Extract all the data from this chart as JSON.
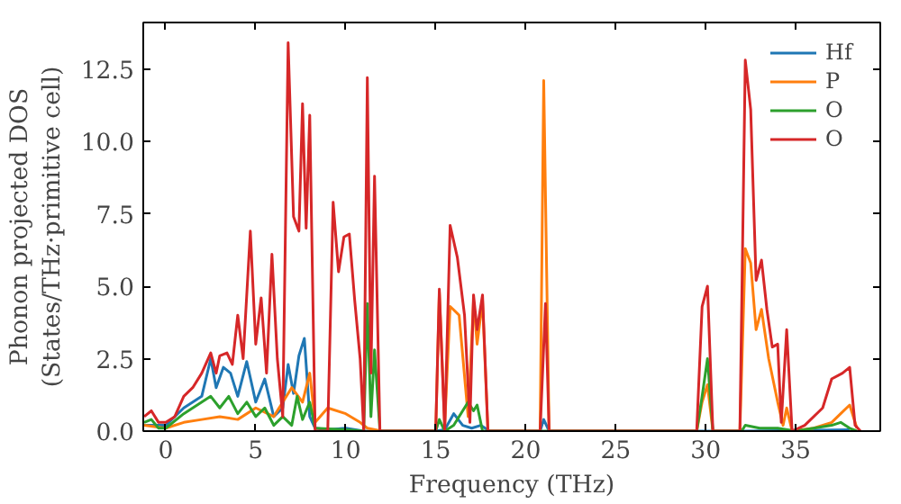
{
  "chart_data": {
    "type": "line",
    "xlabel": "Frequency (THz)",
    "ylabel": "Phonon projected DOS\n(States/THz·primitive cell)",
    "xlim": [
      -1.25,
      39.7
    ],
    "ylim": [
      0,
      14.1
    ],
    "xticks": [
      0,
      5,
      10,
      15,
      20,
      25,
      30,
      35
    ],
    "yticks": [
      {
        "value": 0,
        "label": "0.0"
      },
      {
        "value": 2.5,
        "label": "2.5"
      },
      {
        "value": 5,
        "label": "5.0"
      },
      {
        "value": 7.5,
        "label": "7.5"
      },
      {
        "value": 10,
        "label": "10.0"
      },
      {
        "value": 12.5,
        "label": "12.5"
      }
    ],
    "grid": false,
    "legend": "top right",
    "marker": "none",
    "line_style": "solid",
    "series": [
      {
        "name": "Hf",
        "color": "#1f77b4",
        "x": [
          -1.2,
          0,
          1,
          2,
          2.5,
          2.8,
          3.2,
          3.6,
          4,
          4.5,
          5,
          5.5,
          6,
          6.5,
          6.8,
          7.1,
          7.4,
          7.7,
          8.0,
          8.3,
          9,
          10,
          11,
          15,
          15.5,
          16,
          16.5,
          17,
          17.5,
          18,
          20.8,
          21,
          21.3,
          32.2,
          38
        ],
        "values": [
          0.2,
          0.2,
          0.8,
          1.2,
          2.5,
          1.5,
          2.2,
          2.0,
          1.2,
          2.4,
          1.0,
          1.8,
          0.5,
          0.8,
          2.3,
          1.3,
          2.6,
          3.2,
          0.5,
          0.1,
          0.05,
          0.1,
          0,
          0,
          0.05,
          0.6,
          0.2,
          0.1,
          0.2,
          0,
          0,
          0.4,
          0,
          0,
          0.05
        ]
      },
      {
        "name": "P",
        "color": "#ff7f0e",
        "x": [
          -1.2,
          0,
          1,
          2,
          3,
          4,
          5,
          6,
          7,
          7.6,
          8.0,
          8.3,
          9,
          10,
          10.8,
          11.2,
          12,
          15,
          15.2,
          15.5,
          15.8,
          16.3,
          16.8,
          17.1,
          17.3,
          17.6,
          17.9,
          20.8,
          21.0,
          21.3,
          29.5,
          29.8,
          30.1,
          30.4,
          31.9,
          32.2,
          32.5,
          32.8,
          33.1,
          33.5,
          34,
          34.3,
          34.5,
          34.8,
          36,
          37,
          37.5,
          38.0,
          38.4
        ],
        "values": [
          0.2,
          0.1,
          0.3,
          0.4,
          0.5,
          0.4,
          0.8,
          0.5,
          1.5,
          1.0,
          2.0,
          0.3,
          0.8,
          0.6,
          0.3,
          0.1,
          0,
          0,
          4.8,
          0.2,
          4.3,
          4.0,
          0.5,
          4.5,
          3.0,
          4.5,
          0,
          0,
          12.1,
          0,
          0,
          1.0,
          1.6,
          0,
          0,
          6.3,
          5.8,
          3.5,
          4.2,
          2.5,
          1.0,
          0.2,
          0.8,
          0,
          0.1,
          0.3,
          0.6,
          0.9,
          0.1
        ]
      },
      {
        "name": "O",
        "color": "#2ca02c",
        "x": [
          -1.2,
          -0.8,
          -0.4,
          0,
          1,
          2,
          2.5,
          3,
          3.5,
          4,
          4.5,
          5,
          5.5,
          6,
          6.5,
          7,
          7.3,
          7.6,
          8,
          8.3,
          10,
          11,
          11.2,
          11.4,
          11.6,
          11.9,
          15,
          15.2,
          15.5,
          16,
          16.8,
          17.1,
          17.3,
          17.6,
          29.5,
          29.8,
          30.1,
          30.4,
          32,
          32.2,
          33,
          34,
          35,
          37,
          37.5,
          38,
          38.4
        ],
        "values": [
          0.3,
          0.4,
          0.1,
          0.1,
          0.6,
          1.0,
          1.2,
          0.8,
          1.2,
          0.6,
          1.0,
          0.5,
          0.8,
          0.2,
          0.5,
          0.2,
          1.2,
          0.4,
          1.0,
          0.1,
          0.05,
          0,
          4.4,
          0.5,
          2.8,
          0,
          0,
          0.4,
          0,
          0.2,
          1.0,
          0.7,
          0.9,
          0,
          0,
          1.2,
          2.5,
          0,
          0,
          0.2,
          0.1,
          0.1,
          0,
          0.2,
          0.3,
          0.1,
          0
        ]
      },
      {
        "name": "O",
        "color": "#d62728",
        "x": [
          -1.2,
          -0.8,
          -0.4,
          0,
          0.5,
          1,
          1.5,
          2,
          2.5,
          2.8,
          3,
          3.4,
          3.7,
          4,
          4.3,
          4.7,
          5.0,
          5.3,
          5.6,
          5.9,
          6.2,
          6.5,
          6.8,
          7.1,
          7.4,
          7.6,
          7.8,
          8.0,
          8.3,
          9.0,
          9.3,
          9.6,
          9.9,
          10.2,
          10.5,
          10.8,
          11.0,
          11.2,
          11.4,
          11.6,
          11.9,
          15.0,
          15.2,
          15.5,
          15.8,
          16.2,
          16.6,
          16.9,
          17.1,
          17.3,
          17.6,
          17.9,
          20.8,
          21.1,
          21.3,
          29.5,
          29.8,
          30.1,
          30.4,
          31.9,
          32.2,
          32.5,
          32.8,
          33.1,
          33.4,
          33.7,
          34.0,
          34.2,
          34.5,
          34.8,
          35.5,
          36.5,
          37.0,
          37.6,
          38.0,
          38.3,
          38.6
        ],
        "values": [
          0.5,
          0.7,
          0.3,
          0.3,
          0.5,
          1.2,
          1.5,
          2.0,
          2.7,
          2.0,
          2.6,
          2.7,
          2.3,
          4.0,
          2.5,
          6.9,
          3.0,
          4.6,
          2.0,
          6.1,
          2.5,
          0.5,
          13.4,
          7.4,
          6.9,
          11.3,
          7.0,
          10.9,
          0,
          0,
          7.9,
          5.5,
          6.7,
          6.8,
          4.5,
          2.5,
          0,
          12.2,
          2.0,
          8.8,
          0,
          0,
          4.9,
          0,
          7.1,
          6.0,
          4.0,
          0.3,
          4.7,
          3.5,
          4.7,
          0,
          0,
          4.4,
          0,
          0,
          4.3,
          5.0,
          0,
          0,
          12.8,
          11.1,
          5.2,
          5.9,
          4.2,
          2.9,
          3.0,
          0.3,
          3.5,
          0,
          0.2,
          0.8,
          1.8,
          2.0,
          2.2,
          0.2,
          0
        ]
      }
    ]
  }
}
